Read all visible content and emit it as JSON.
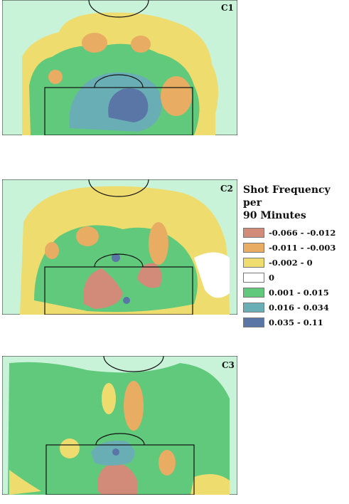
{
  "chart_data": [
    {
      "type": "heatmap",
      "panel_label": "C1",
      "title": "",
      "xlabel": "",
      "ylabel": "",
      "dominant_bin": "0.001 - 0.015",
      "hotspot_bin": "0.035 - 0.11"
    },
    {
      "type": "heatmap",
      "panel_label": "C2",
      "title": "",
      "xlabel": "",
      "ylabel": "",
      "dominant_bin": "-0.002 - 0",
      "hotspot_bin": "-0.066 - -0.012"
    },
    {
      "type": "heatmap",
      "panel_label": "C3",
      "title": "",
      "xlabel": "",
      "ylabel": "",
      "dominant_bin": "0.001 - 0.015",
      "hotspot_bin": "-0.066 - -0.012"
    }
  ],
  "legend": {
    "title_line1": "Shot Frequency per",
    "title_line2": "90 Minutes",
    "bins": [
      {
        "label": "-0.066 - -0.012",
        "color": "#d28b78"
      },
      {
        "label": "-0.011 - -0.003",
        "color": "#e8ac62"
      },
      {
        "label": "-0.002 - 0",
        "color": "#efdc6e"
      },
      {
        "label": "0",
        "color": "#ffffff"
      },
      {
        "label": "0.001 - 0.015",
        "color": "#61c97c"
      },
      {
        "label": "0.016 - 0.034",
        "color": "#6aaeb5"
      },
      {
        "label": "0.035 - 0.11",
        "color": "#5a76a6"
      }
    ]
  },
  "pitch_background_color": "#c9f3d9"
}
